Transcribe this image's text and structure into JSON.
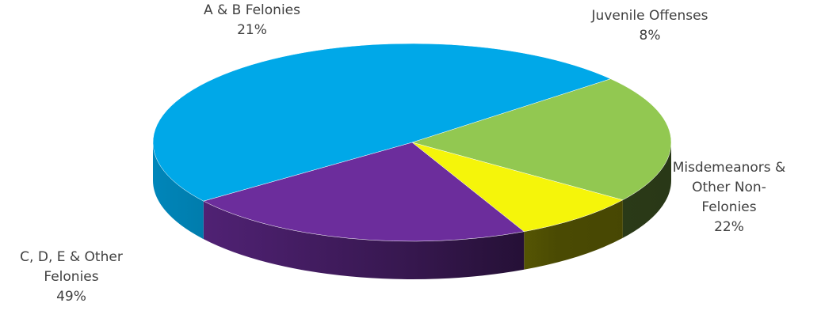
{
  "chart_data": {
    "type": "pie",
    "style": "3d",
    "title": "",
    "slices": [
      {
        "label_lines": [
          "A & B Felonies"
        ],
        "value": 21,
        "value_label": "21%",
        "color": "#92c851"
      },
      {
        "label_lines": [
          "Juvenile Offenses"
        ],
        "value": 8,
        "value_label": "8%",
        "color": "#f5f50a"
      },
      {
        "label_lines": [
          "Misdemeanors &",
          "Other Non-",
          "Felonies"
        ],
        "value": 22,
        "value_label": "22%",
        "color": "#6c2d9c"
      },
      {
        "label_lines": [
          "C, D, E & Other",
          "Felonies"
        ],
        "value": 49,
        "value_label": "49%",
        "color": "#00a8e8"
      }
    ],
    "legend": "none"
  }
}
